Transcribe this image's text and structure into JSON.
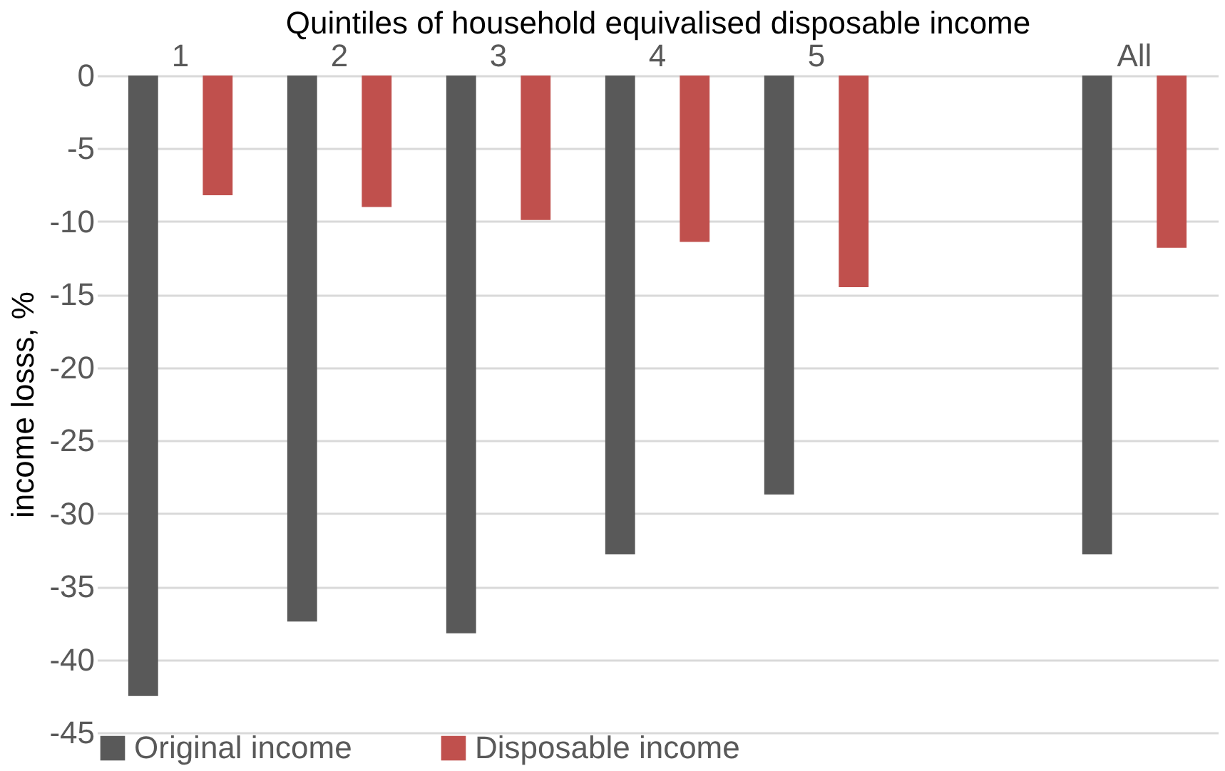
{
  "chart_data": {
    "type": "bar",
    "xlabel": "Quintiles of household equivalised disposable income",
    "ylabel": "income losss, %",
    "categories": [
      "1",
      "2",
      "3",
      "4",
      "5",
      null,
      "All"
    ],
    "series": [
      {
        "name": "Original income",
        "color": "#595959",
        "values": [
          -42.5,
          -37.4,
          -38.2,
          -32.8,
          -28.7,
          null,
          -32.8
        ]
      },
      {
        "name": "Disposable income",
        "color": "#c0504d",
        "values": [
          -8.2,
          -9.0,
          -9.9,
          -11.4,
          -14.5,
          null,
          -11.8
        ]
      }
    ],
    "ylim": [
      -45,
      0
    ],
    "yticks": [
      -45,
      -40,
      -35,
      -30,
      -25,
      -20,
      -15,
      -10,
      -5,
      0
    ],
    "grid": "y",
    "legend": "bottom"
  }
}
